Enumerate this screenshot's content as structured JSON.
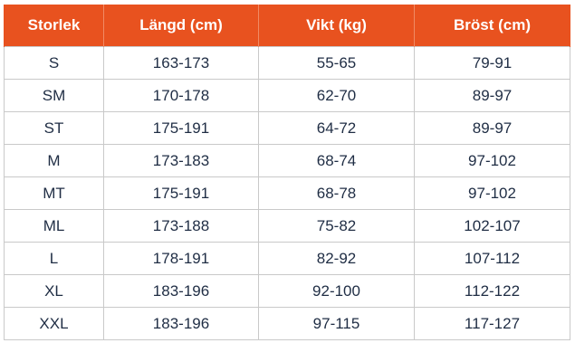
{
  "table": {
    "headers": [
      "Storlek",
      "Längd (cm)",
      "Vikt (kg)",
      "Bröst (cm)"
    ],
    "rows": [
      [
        "S",
        "163-173",
        "55-65",
        "79-91"
      ],
      [
        "SM",
        "170-178",
        "62-70",
        "89-97"
      ],
      [
        "ST",
        "175-191",
        "64-72",
        "89-97"
      ],
      [
        "M",
        "173-183",
        "68-74",
        "97-102"
      ],
      [
        "MT",
        "175-191",
        "68-78",
        "97-102"
      ],
      [
        "ML",
        "173-188",
        "75-82",
        "102-107"
      ],
      [
        "L",
        "178-191",
        "82-92",
        "107-112"
      ],
      [
        "XL",
        "183-196",
        "92-100",
        "112-122"
      ],
      [
        "XXL",
        "183-196",
        "97-115",
        "117-127"
      ]
    ]
  },
  "colors": {
    "header_background": "#e8521f",
    "header_text": "#ffffff",
    "cell_text": "#1f2d44",
    "grid_line": "#c9c9c9"
  }
}
